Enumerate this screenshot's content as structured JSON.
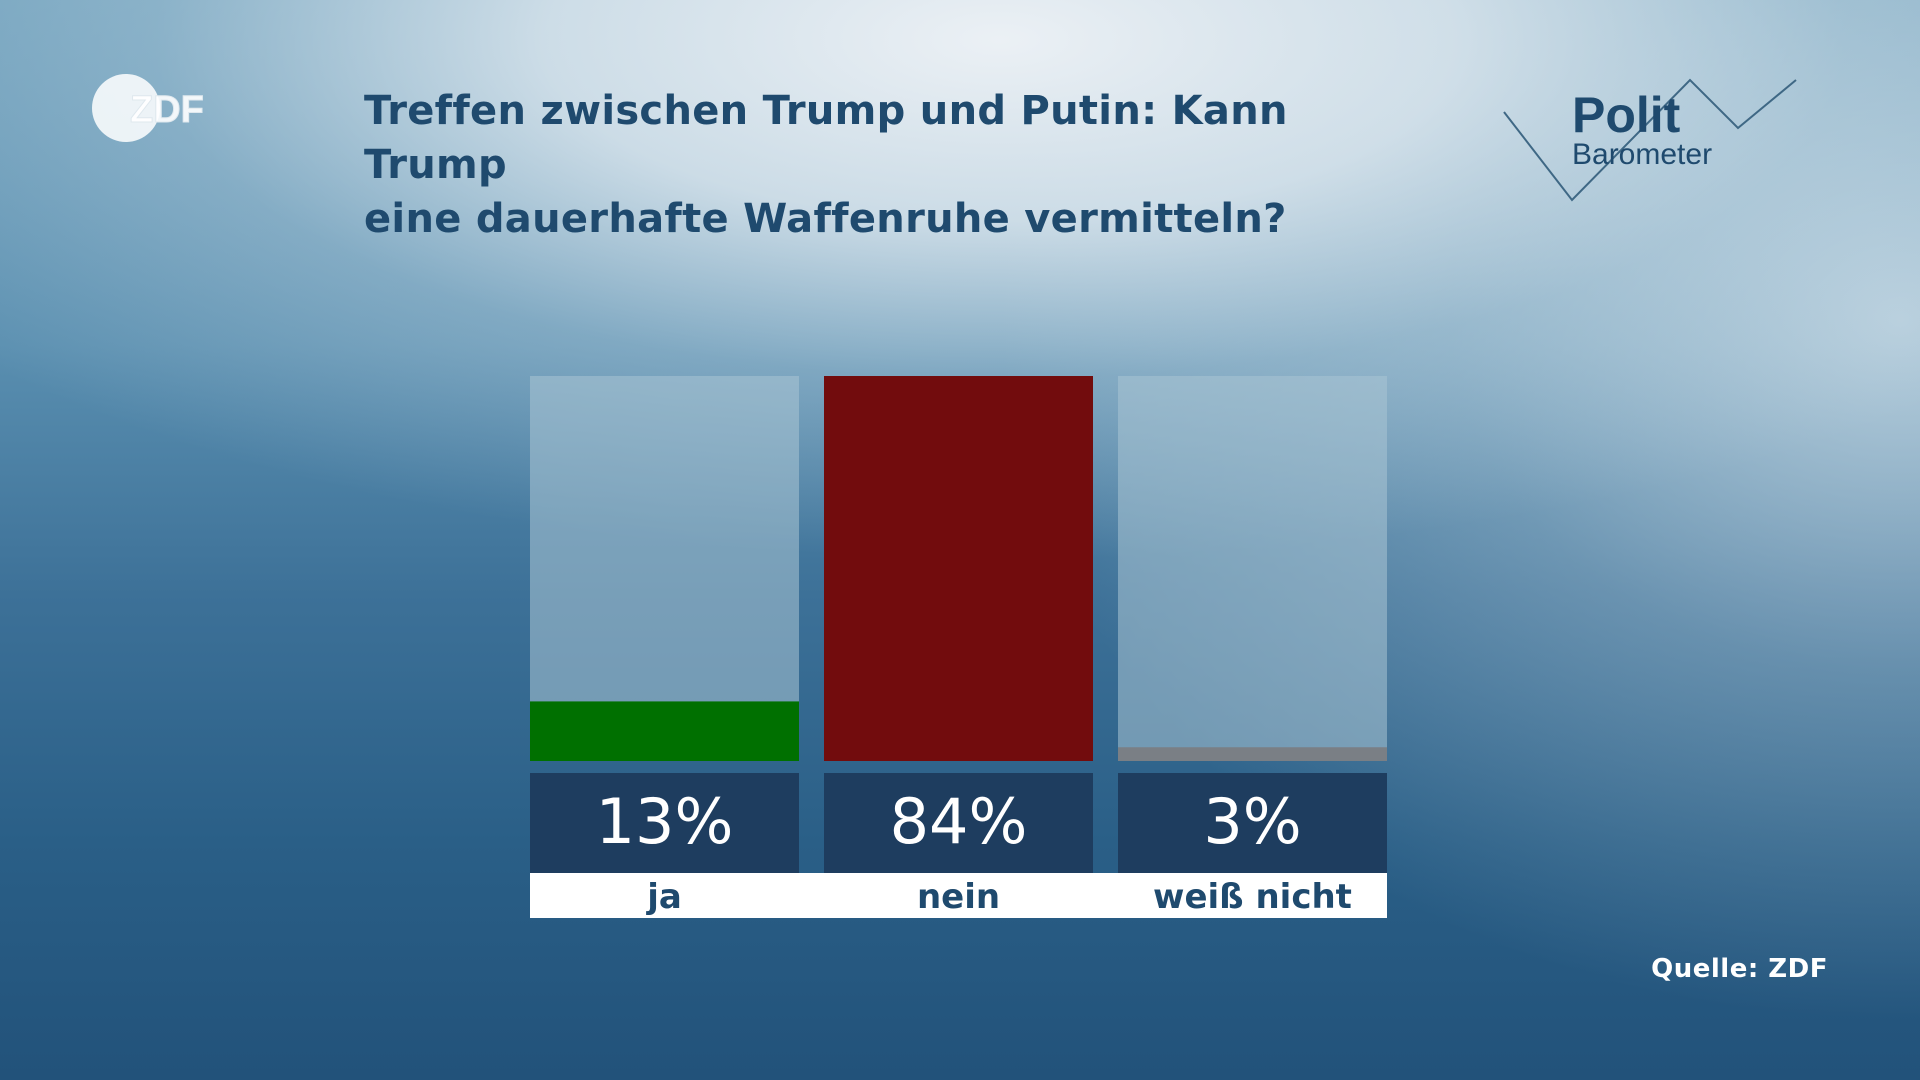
{
  "title_lines": [
    "Treffen zwischen Trump und Putin: Kann Trump",
    "eine dauerhafte Waffenruhe vermitteln?"
  ],
  "logos": {
    "zdf": "ZDF",
    "polit_top": "Polit",
    "polit_bottom": "Barometer"
  },
  "source": "Quelle: ZDF",
  "colors": {
    "title": "#1f4a6e",
    "track": "#a9c4d4",
    "value_box": "#1e3d5f",
    "label_box": "#ffffff",
    "label_text": "#1f4a6e"
  },
  "chart_data": {
    "type": "bar",
    "categories": [
      "ja",
      "nein",
      "weiß nicht"
    ],
    "values": [
      13,
      84,
      3
    ],
    "value_labels": [
      "13%",
      "84%",
      "3%"
    ],
    "colors": [
      "#007000",
      "#720c0d",
      "#7a7f85"
    ],
    "ylim": [
      0,
      84
    ],
    "title": "Treffen zwischen Trump und Putin: Kann Trump eine dauerhafte Waffenruhe vermitteln?",
    "xlabel": "",
    "ylabel": ""
  }
}
